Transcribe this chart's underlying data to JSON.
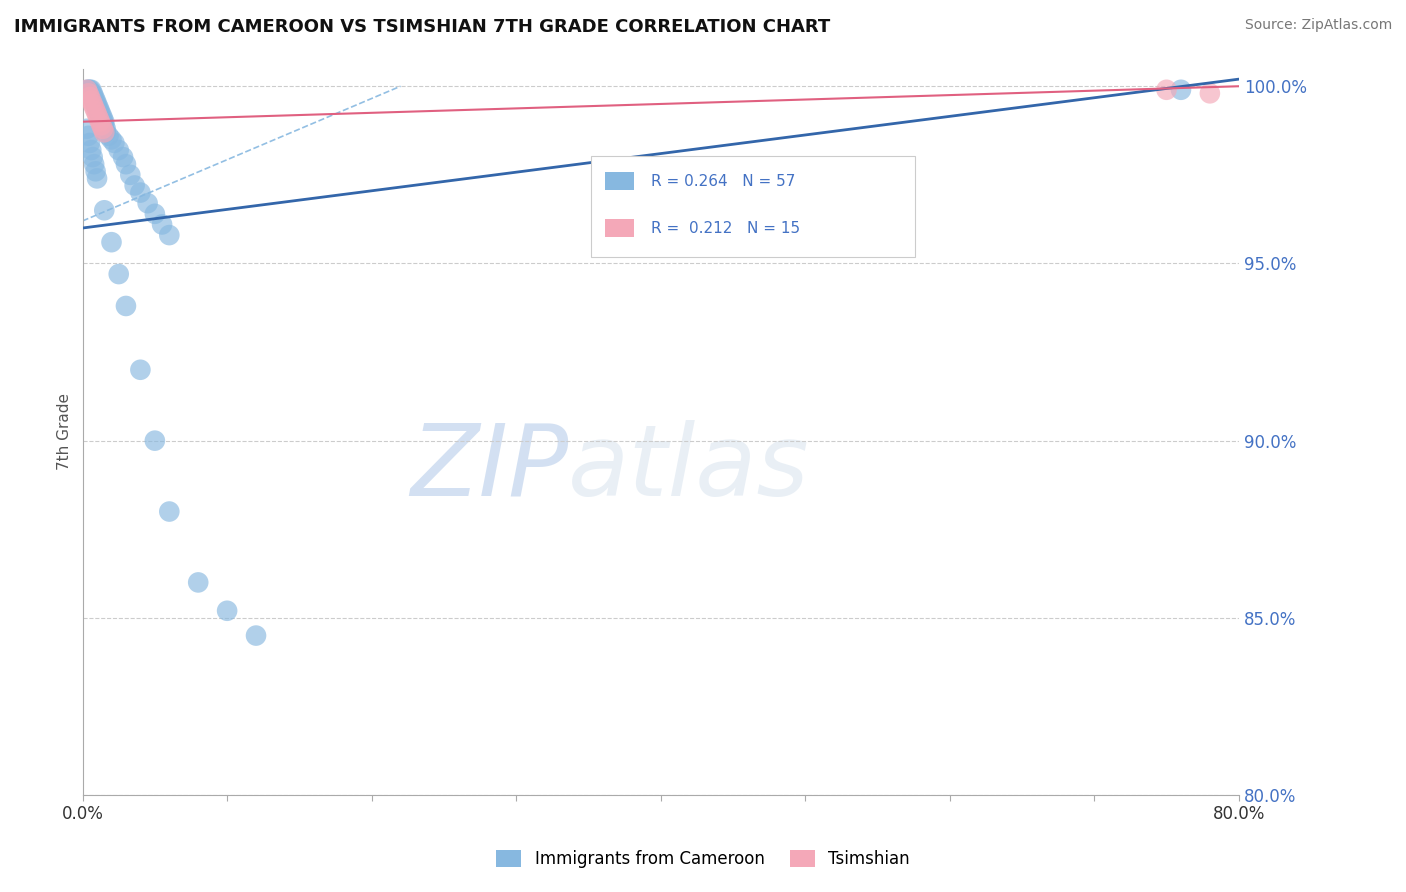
{
  "title": "IMMIGRANTS FROM CAMEROON VS TSIMSHIAN 7TH GRADE CORRELATION CHART",
  "source_text": "Source: ZipAtlas.com",
  "ylabel": "7th Grade",
  "xlim": [
    0.0,
    0.8
  ],
  "ylim": [
    0.8,
    1.005
  ],
  "xtick_positions": [
    0.0,
    0.1,
    0.2,
    0.3,
    0.4,
    0.5,
    0.6,
    0.7,
    0.8
  ],
  "xticklabels": [
    "0.0%",
    "",
    "",
    "",
    "",
    "",
    "",
    "",
    "80.0%"
  ],
  "ytick_positions": [
    0.8,
    0.85,
    0.9,
    0.95,
    1.0
  ],
  "yticklabels": [
    "80.0%",
    "85.0%",
    "90.0%",
    "95.0%",
    "100.0%"
  ],
  "legend_r_blue": "R = 0.264",
  "legend_n_blue": "N = 57",
  "legend_r_pink": "R =  0.212",
  "legend_n_pink": "N = 15",
  "blue_color": "#87b8e0",
  "pink_color": "#f4a8b8",
  "blue_line_color": "#3366aa",
  "pink_line_color": "#e06080",
  "tick_color": "#4472c4",
  "watermark_zip": "ZIP",
  "watermark_atlas": "atlas",
  "blue_scatter_x": [
    0.003,
    0.004,
    0.005,
    0.006,
    0.006,
    0.007,
    0.007,
    0.008,
    0.008,
    0.009,
    0.009,
    0.01,
    0.01,
    0.011,
    0.011,
    0.012,
    0.012,
    0.013,
    0.013,
    0.014,
    0.014,
    0.015,
    0.015,
    0.016,
    0.016,
    0.018,
    0.02,
    0.022,
    0.025,
    0.028,
    0.03,
    0.033,
    0.036,
    0.04,
    0.045,
    0.05,
    0.055,
    0.06,
    0.003,
    0.004,
    0.005,
    0.006,
    0.007,
    0.008,
    0.009,
    0.01,
    0.015,
    0.02,
    0.025,
    0.03,
    0.04,
    0.05,
    0.06,
    0.08,
    0.1,
    0.12,
    0.76
  ],
  "blue_scatter_y": [
    0.999,
    0.999,
    0.999,
    0.999,
    0.998,
    0.998,
    0.997,
    0.997,
    0.996,
    0.996,
    0.995,
    0.995,
    0.994,
    0.994,
    0.993,
    0.993,
    0.992,
    0.992,
    0.991,
    0.991,
    0.99,
    0.99,
    0.989,
    0.988,
    0.987,
    0.986,
    0.985,
    0.984,
    0.982,
    0.98,
    0.978,
    0.975,
    0.972,
    0.97,
    0.967,
    0.964,
    0.961,
    0.958,
    0.988,
    0.986,
    0.984,
    0.982,
    0.98,
    0.978,
    0.976,
    0.974,
    0.965,
    0.956,
    0.947,
    0.938,
    0.92,
    0.9,
    0.88,
    0.86,
    0.852,
    0.845,
    0.999
  ],
  "pink_scatter_x": [
    0.003,
    0.004,
    0.005,
    0.006,
    0.007,
    0.008,
    0.009,
    0.01,
    0.011,
    0.012,
    0.013,
    0.014,
    0.015,
    0.75,
    0.78
  ],
  "pink_scatter_y": [
    0.999,
    0.998,
    0.997,
    0.996,
    0.995,
    0.994,
    0.993,
    0.992,
    0.991,
    0.99,
    0.989,
    0.988,
    0.987,
    0.999,
    0.998
  ],
  "blue_trend_x": [
    0.0,
    0.8
  ],
  "blue_trend_y": [
    0.96,
    1.002
  ],
  "pink_trend_x": [
    0.0,
    0.8
  ],
  "pink_trend_y": [
    0.99,
    1.0
  ],
  "ref_line_x": [
    0.0,
    0.22
  ],
  "ref_line_y": [
    0.962,
    1.0
  ]
}
